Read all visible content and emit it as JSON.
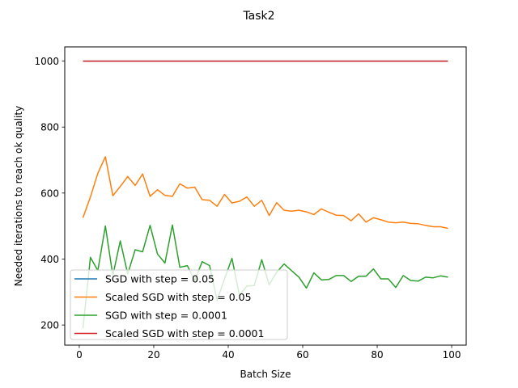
{
  "chart_data": {
    "type": "line",
    "title": "Task2",
    "xlabel": "Batch Size",
    "ylabel": "Needed iterations to reach ok quality",
    "xlim": [
      -3.9,
      103.9
    ],
    "ylim": [
      139,
      1043
    ],
    "xticks": [
      0,
      20,
      40,
      60,
      80,
      100
    ],
    "yticks": [
      200,
      400,
      600,
      800,
      1000
    ],
    "grid": false,
    "legend_position": "lower-left",
    "series": [
      {
        "name": "SGD with step = 0.05",
        "color": "#1f77b4",
        "x": [
          1,
          99
        ],
        "y": [
          1000,
          1000
        ]
      },
      {
        "name": "Scaled SGD with step = 0.05",
        "color": "#ff7f0e",
        "x": [
          1,
          3,
          5,
          7,
          9,
          11,
          13,
          15,
          17,
          19,
          21,
          23,
          25,
          27,
          29,
          31,
          33,
          35,
          37,
          39,
          41,
          43,
          45,
          47,
          49,
          51,
          53,
          55,
          57,
          59,
          61,
          63,
          65,
          67,
          69,
          71,
          73,
          75,
          77,
          79,
          81,
          83,
          85,
          87,
          89,
          91,
          93,
          95,
          97,
          99
        ],
        "y": [
          525,
          588,
          660,
          710,
          592,
          620,
          650,
          623,
          658,
          590,
          610,
          593,
          590,
          628,
          615,
          618,
          580,
          578,
          560,
          596,
          570,
          575,
          588,
          560,
          578,
          532,
          571,
          548,
          545,
          548,
          543,
          535,
          552,
          542,
          533,
          532,
          516,
          537,
          512,
          525,
          519,
          512,
          510,
          512,
          508,
          507,
          502,
          498,
          498,
          493
        ]
      },
      {
        "name": "SGD with step = 0.0001",
        "color": "#2ca02c",
        "x": [
          1,
          3,
          5,
          7,
          9,
          11,
          13,
          15,
          17,
          19,
          21,
          23,
          25,
          27,
          29,
          31,
          33,
          35,
          37,
          39,
          41,
          43,
          45,
          47,
          49,
          51,
          53,
          55,
          57,
          59,
          61,
          63,
          65,
          67,
          69,
          71,
          73,
          75,
          77,
          79,
          81,
          83,
          85,
          87,
          89,
          91,
          93,
          95,
          97,
          99
        ],
        "y": [
          190,
          405,
          365,
          500,
          350,
          455,
          355,
          428,
          422,
          502,
          415,
          388,
          503,
          375,
          380,
          335,
          392,
          380,
          275,
          340,
          402,
          290,
          318,
          320,
          398,
          322,
          360,
          385,
          365,
          345,
          312,
          358,
          337,
          338,
          350,
          350,
          332,
          348,
          348,
          370,
          340,
          340,
          314,
          350,
          335,
          333,
          345,
          343,
          349,
          345
        ]
      },
      {
        "name": "Scaled SGD with step = 0.0001",
        "color": "#d62728",
        "x": [
          1,
          99
        ],
        "y": [
          1000,
          1000
        ]
      }
    ]
  }
}
